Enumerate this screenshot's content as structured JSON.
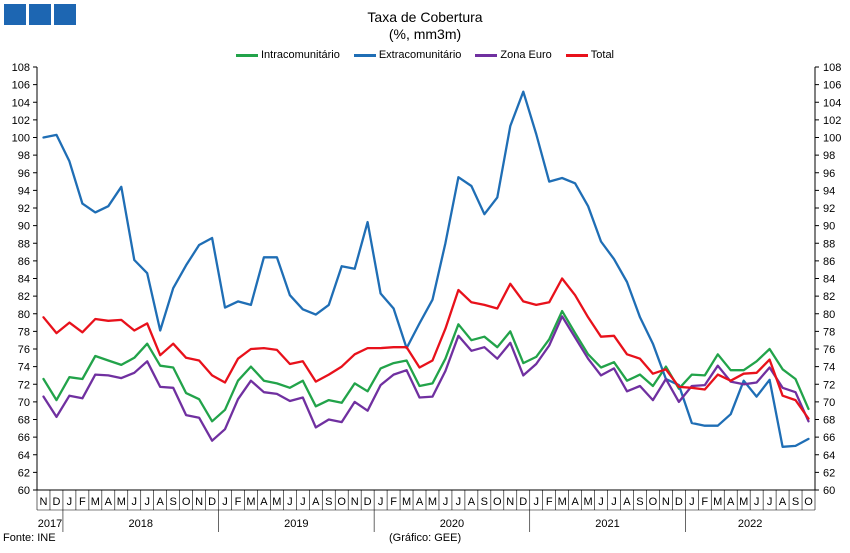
{
  "logo": {
    "color": "#1d66b2"
  },
  "source": "Fonte: INE",
  "credit": "(Gráfico: GEE)",
  "chart_data": {
    "type": "line",
    "title": "Taxa de Cobertura",
    "subtitle": "(%, mm3m)",
    "xlabel": "",
    "ylabel": "",
    "ylim": [
      60,
      108
    ],
    "ytick_step": 2,
    "right_axis": true,
    "grid": false,
    "legend_position": "top-center",
    "x_month_letters": [
      "N",
      "D",
      "J",
      "F",
      "M",
      "A",
      "M",
      "J",
      "J",
      "A",
      "S",
      "O",
      "N",
      "D",
      "J",
      "F",
      "M",
      "A",
      "M",
      "J",
      "J",
      "A",
      "S",
      "O",
      "N",
      "D",
      "J",
      "F",
      "M",
      "A",
      "M",
      "J",
      "J",
      "A",
      "S",
      "O",
      "N",
      "D",
      "J",
      "F",
      "M",
      "A",
      "M",
      "J",
      "J",
      "A",
      "S",
      "O",
      "N",
      "D",
      "J",
      "F",
      "M",
      "A",
      "M",
      "J",
      "J",
      "A",
      "S",
      "O"
    ],
    "year_labels": [
      {
        "label": "2017",
        "first": 0,
        "last": 1
      },
      {
        "label": "2018",
        "first": 2,
        "last": 13
      },
      {
        "label": "2019",
        "first": 14,
        "last": 25
      },
      {
        "label": "2020",
        "first": 26,
        "last": 37
      },
      {
        "label": "2021",
        "first": 38,
        "last": 49
      },
      {
        "label": "2022",
        "first": 50,
        "last": 59
      }
    ],
    "series": [
      {
        "name": "Intracomunitário",
        "color": "#22a34a",
        "values": [
          72.6,
          70.2,
          72.8,
          72.6,
          75.2,
          74.7,
          74.2,
          75.0,
          76.6,
          74.1,
          73.9,
          71.0,
          70.3,
          67.8,
          69.1,
          72.4,
          74.0,
          72.4,
          72.1,
          71.6,
          72.4,
          69.5,
          70.2,
          69.9,
          72.1,
          71.2,
          73.8,
          74.4,
          74.7,
          71.8,
          72.1,
          74.9,
          78.8,
          77.0,
          77.4,
          76.2,
          78.0,
          74.4,
          75.1,
          77.1,
          80.3,
          77.8,
          75.4,
          73.9,
          74.5,
          72.4,
          73.1,
          71.8,
          74.0,
          71.5,
          73.1,
          73.0,
          75.4,
          73.6,
          73.6,
          74.6,
          76.0,
          73.7,
          72.6,
          69.2
        ]
      },
      {
        "name": "Extracomunitário",
        "color": "#1f6eb5",
        "values": [
          100.0,
          100.3,
          97.3,
          92.5,
          91.5,
          92.2,
          94.4,
          86.1,
          84.6,
          78.1,
          82.9,
          85.5,
          87.8,
          88.6,
          80.7,
          81.4,
          81.0,
          86.4,
          86.4,
          82.1,
          80.5,
          79.9,
          81.0,
          85.4,
          85.1,
          90.4,
          82.3,
          80.6,
          76.1,
          78.9,
          81.6,
          88.0,
          95.5,
          94.5,
          91.3,
          93.2,
          101.3,
          105.2,
          100.4,
          95.0,
          95.4,
          94.8,
          92.2,
          88.2,
          86.2,
          83.6,
          79.6,
          76.6,
          72.6,
          71.9,
          67.6,
          67.3,
          67.3,
          68.6,
          72.4,
          70.6,
          72.5,
          64.9,
          65.0,
          65.8
        ]
      },
      {
        "name": "Zona Euro",
        "color": "#7030a0",
        "values": [
          70.6,
          68.3,
          70.7,
          70.4,
          73.1,
          73.0,
          72.7,
          73.3,
          74.6,
          71.7,
          71.6,
          68.5,
          68.2,
          65.6,
          66.9,
          70.3,
          72.4,
          71.1,
          70.9,
          70.1,
          70.5,
          67.1,
          68.0,
          67.7,
          70.0,
          69.0,
          71.9,
          73.1,
          73.6,
          70.5,
          70.6,
          73.5,
          77.5,
          75.8,
          76.2,
          74.9,
          76.7,
          73.0,
          74.3,
          76.4,
          79.7,
          77.3,
          74.9,
          73.0,
          73.8,
          71.2,
          71.8,
          70.2,
          72.6,
          70.0,
          71.8,
          71.9,
          74.1,
          72.3,
          72.0,
          72.2,
          73.9,
          71.6,
          71.1,
          67.8
        ]
      },
      {
        "name": "Total",
        "color": "#e8111b",
        "values": [
          79.6,
          77.8,
          79.0,
          77.9,
          79.4,
          79.2,
          79.3,
          78.1,
          78.9,
          75.3,
          76.6,
          75.0,
          74.7,
          73.0,
          72.2,
          74.9,
          76.0,
          76.1,
          75.9,
          74.3,
          74.6,
          72.3,
          73.1,
          74.0,
          75.4,
          76.1,
          76.1,
          76.2,
          76.2,
          73.9,
          74.7,
          78.3,
          82.7,
          81.3,
          81.0,
          80.6,
          83.4,
          81.4,
          81.0,
          81.3,
          84.0,
          82.1,
          79.6,
          77.4,
          77.5,
          75.4,
          74.9,
          73.2,
          73.7,
          71.7,
          71.6,
          71.4,
          73.1,
          72.4,
          73.2,
          73.3,
          74.8,
          70.7,
          70.2,
          68.1
        ]
      }
    ]
  }
}
